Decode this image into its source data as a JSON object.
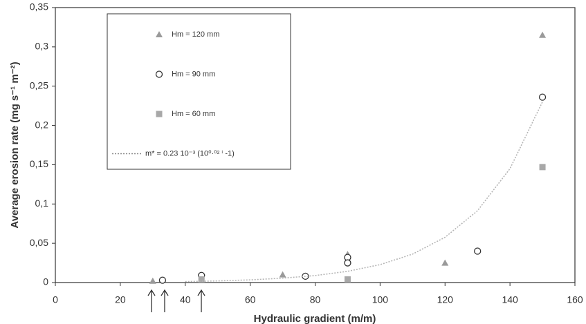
{
  "chart_data": {
    "type": "scatter",
    "x_label": "Hydraulic gradient (m/m)",
    "y_label": "Average erosion rate (mg s⁻¹ m⁻²)",
    "xlim": [
      0,
      160
    ],
    "xticks": [
      0,
      20,
      40,
      60,
      80,
      100,
      120,
      140,
      160
    ],
    "ylim": [
      0,
      0.35
    ],
    "yticks": [
      {
        "value": 0,
        "label": "0"
      },
      {
        "value": 0.05,
        "label": "0,05"
      },
      {
        "value": 0.1,
        "label": "0,1"
      },
      {
        "value": 0.15,
        "label": "0,15"
      },
      {
        "value": 0.2,
        "label": "0,2"
      },
      {
        "value": 0.25,
        "label": "0,25"
      },
      {
        "value": 0.3,
        "label": "0,3"
      },
      {
        "value": 0.35,
        "label": "0,35"
      }
    ],
    "series": [
      {
        "name": "Hm = 120 mm",
        "marker": "triangle",
        "color": "#9a9a9a",
        "x": [
          30,
          70,
          90,
          120,
          150
        ],
        "values": [
          0.002,
          0.01,
          0.036,
          0.025,
          0.315
        ]
      },
      {
        "name": "Hm = 90 mm",
        "marker": "circle",
        "color": "#333333",
        "x": [
          33,
          45,
          77,
          90,
          90,
          130,
          150
        ],
        "values": [
          0.003,
          0.009,
          0.008,
          0.032,
          0.025,
          0.04,
          0.236
        ]
      },
      {
        "name": "Hm = 60 mm",
        "marker": "square",
        "color": "#a8a8a8",
        "x": [
          45,
          90,
          150
        ],
        "values": [
          0.004,
          0.004,
          0.147
        ]
      },
      {
        "name": "m* = 0.23 10⁻³ (10⁰·⁰² ⁱ -1)",
        "marker": "line",
        "color": "#b5b5b5",
        "x": [
          40,
          50,
          60,
          70,
          80,
          90,
          100,
          110,
          120,
          130,
          140,
          150
        ],
        "values": [
          0.0012,
          0.0021,
          0.0034,
          0.0056,
          0.0089,
          0.0143,
          0.0228,
          0.0362,
          0.0576,
          0.0914,
          0.145,
          0.23
        ]
      }
    ]
  }
}
